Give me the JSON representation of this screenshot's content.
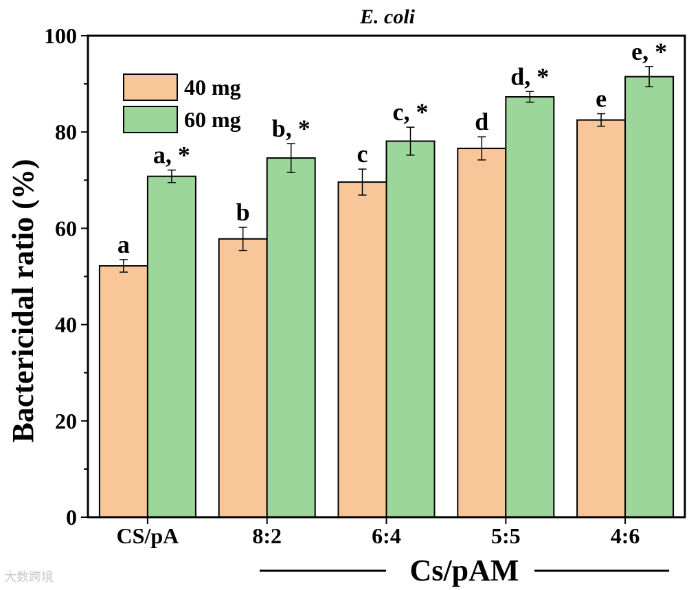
{
  "chart_data": {
    "type": "bar",
    "title": "E. coli",
    "xlabel": "Cs/pAM",
    "ylabel": "Bactericidal ratio (%)",
    "ylim": [
      0,
      100
    ],
    "yticks": [
      0,
      20,
      40,
      60,
      80,
      100
    ],
    "grid": false,
    "legend_position": "top-left",
    "categories": [
      "CS/pA",
      "8:2",
      "6:4",
      "5:5",
      "4:6"
    ],
    "series": [
      {
        "name": "40 mg",
        "color": "#f9c699",
        "values": [
          52.2,
          57.8,
          69.6,
          76.6,
          82.5
        ],
        "errors": [
          1.3,
          2.4,
          2.7,
          2.4,
          1.3
        ],
        "labels": [
          "a",
          "b",
          "c",
          "d",
          "e"
        ]
      },
      {
        "name": "60 mg",
        "color": "#9dd69b",
        "values": [
          70.8,
          74.6,
          78.1,
          87.3,
          91.5
        ],
        "errors": [
          1.3,
          3.0,
          2.9,
          1.1,
          2.1
        ],
        "labels": [
          "a, *",
          "b, *",
          "c, *",
          "d, *",
          "e, *"
        ]
      }
    ]
  },
  "watermark": "大数跨境"
}
